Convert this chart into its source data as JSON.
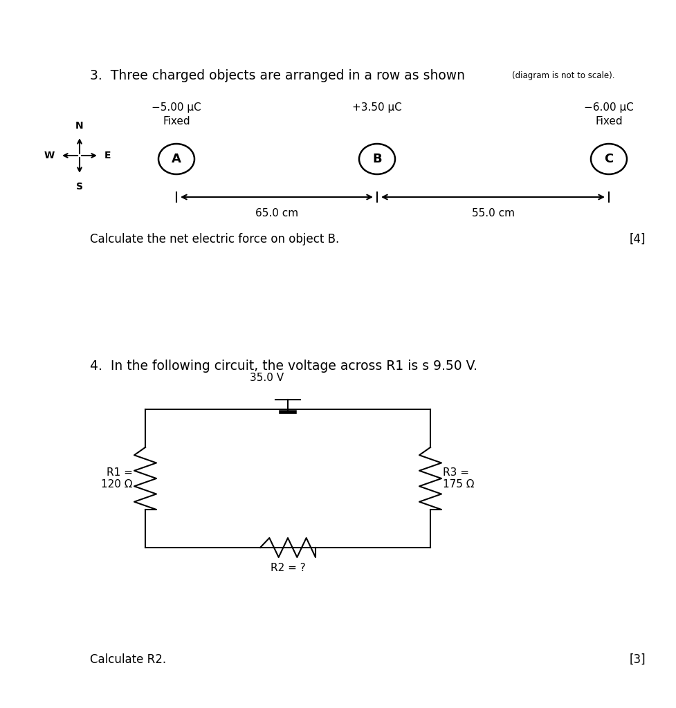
{
  "bg_color": "#ffffff",
  "fig_width": 9.78,
  "fig_height": 10.24,
  "q3_title_main": "3.  Three charged objects are arranged in a row as shown ",
  "q3_title_small": "(diagram is not to scale).",
  "charge_A_label": "−5.00 μC",
  "charge_A_sub": "Fixed",
  "charge_B_label": "+3.50 μC",
  "charge_C_label": "−6.00 μC",
  "charge_C_sub": "Fixed",
  "dist_AB": "65.0 cm",
  "dist_BC": "55.0 cm",
  "q3_question": "Calculate the net electric force on object B.",
  "q3_marks": "[4]",
  "q4_title": "4.  In the following circuit, the voltage across R1 is s 9.50 V.",
  "q4_voltage": "35.0 V",
  "R1_label": "R1 =\n120 Ω",
  "R2_label": "R2 = ?",
  "R3_label": "R3 =\n175 Ω",
  "q4_question": "Calculate R2.",
  "q4_marks": "[3]"
}
